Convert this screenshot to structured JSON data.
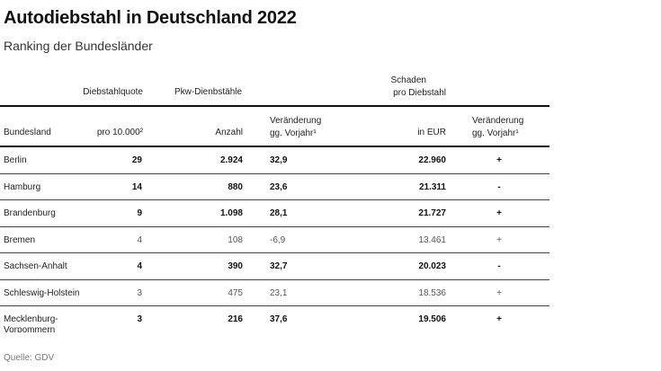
{
  "title": "Autodiebstahl in Deutschland 2022",
  "subtitle": "Ranking der Bundesländer",
  "group_headers": {
    "quote": "Diebstahlquote",
    "pkw": "Pkw-Dienbstähle",
    "schaden_l1": "Schaden",
    "schaden_l2": "pro Diebstahl"
  },
  "columns": {
    "land": "Bundesland",
    "quote": "pro 10.000²",
    "anzahl": "Anzahl",
    "veraenderung_l1": "Veränderung",
    "veraenderung_l2": "gg. Vorjahr¹",
    "eur": "in EUR",
    "veraenderung2_l1": "Veränderung",
    "veraenderung2_l2": "gg. Vorjahr¹"
  },
  "rows": [
    {
      "land": "Berlin",
      "quote": "29",
      "anzahl": "2.924",
      "veraenderung": "32,9",
      "schaden": "22.960",
      "trend": "+"
    },
    {
      "land": "Hamburg",
      "quote": "14",
      "anzahl": "880",
      "veraenderung": "23,6",
      "schaden": "21.311",
      "trend": "-"
    },
    {
      "land": "Brandenburg",
      "quote": "9",
      "anzahl": "1.098",
      "veraenderung": "28,1",
      "schaden": "21.727",
      "trend": "+"
    },
    {
      "land": "Bremen",
      "quote": "4",
      "anzahl": "108",
      "veraenderung": "-6,9",
      "schaden": "13.461",
      "trend": "+"
    },
    {
      "land": "Sachsen-Anhalt",
      "quote": "4",
      "anzahl": "390",
      "veraenderung": "32,7",
      "schaden": "20.023",
      "trend": "-"
    },
    {
      "land": "Schleswig-Holstein",
      "quote": "3",
      "anzahl": "475",
      "veraenderung": "23,1",
      "schaden": "18.536",
      "trend": "+"
    },
    {
      "land": "Mecklenburg-Vorpommern",
      "quote": "3",
      "anzahl": "216",
      "veraenderung": "37,6",
      "schaden": "19.506",
      "trend": "+"
    }
  ],
  "source": "Quelle: GDV"
}
